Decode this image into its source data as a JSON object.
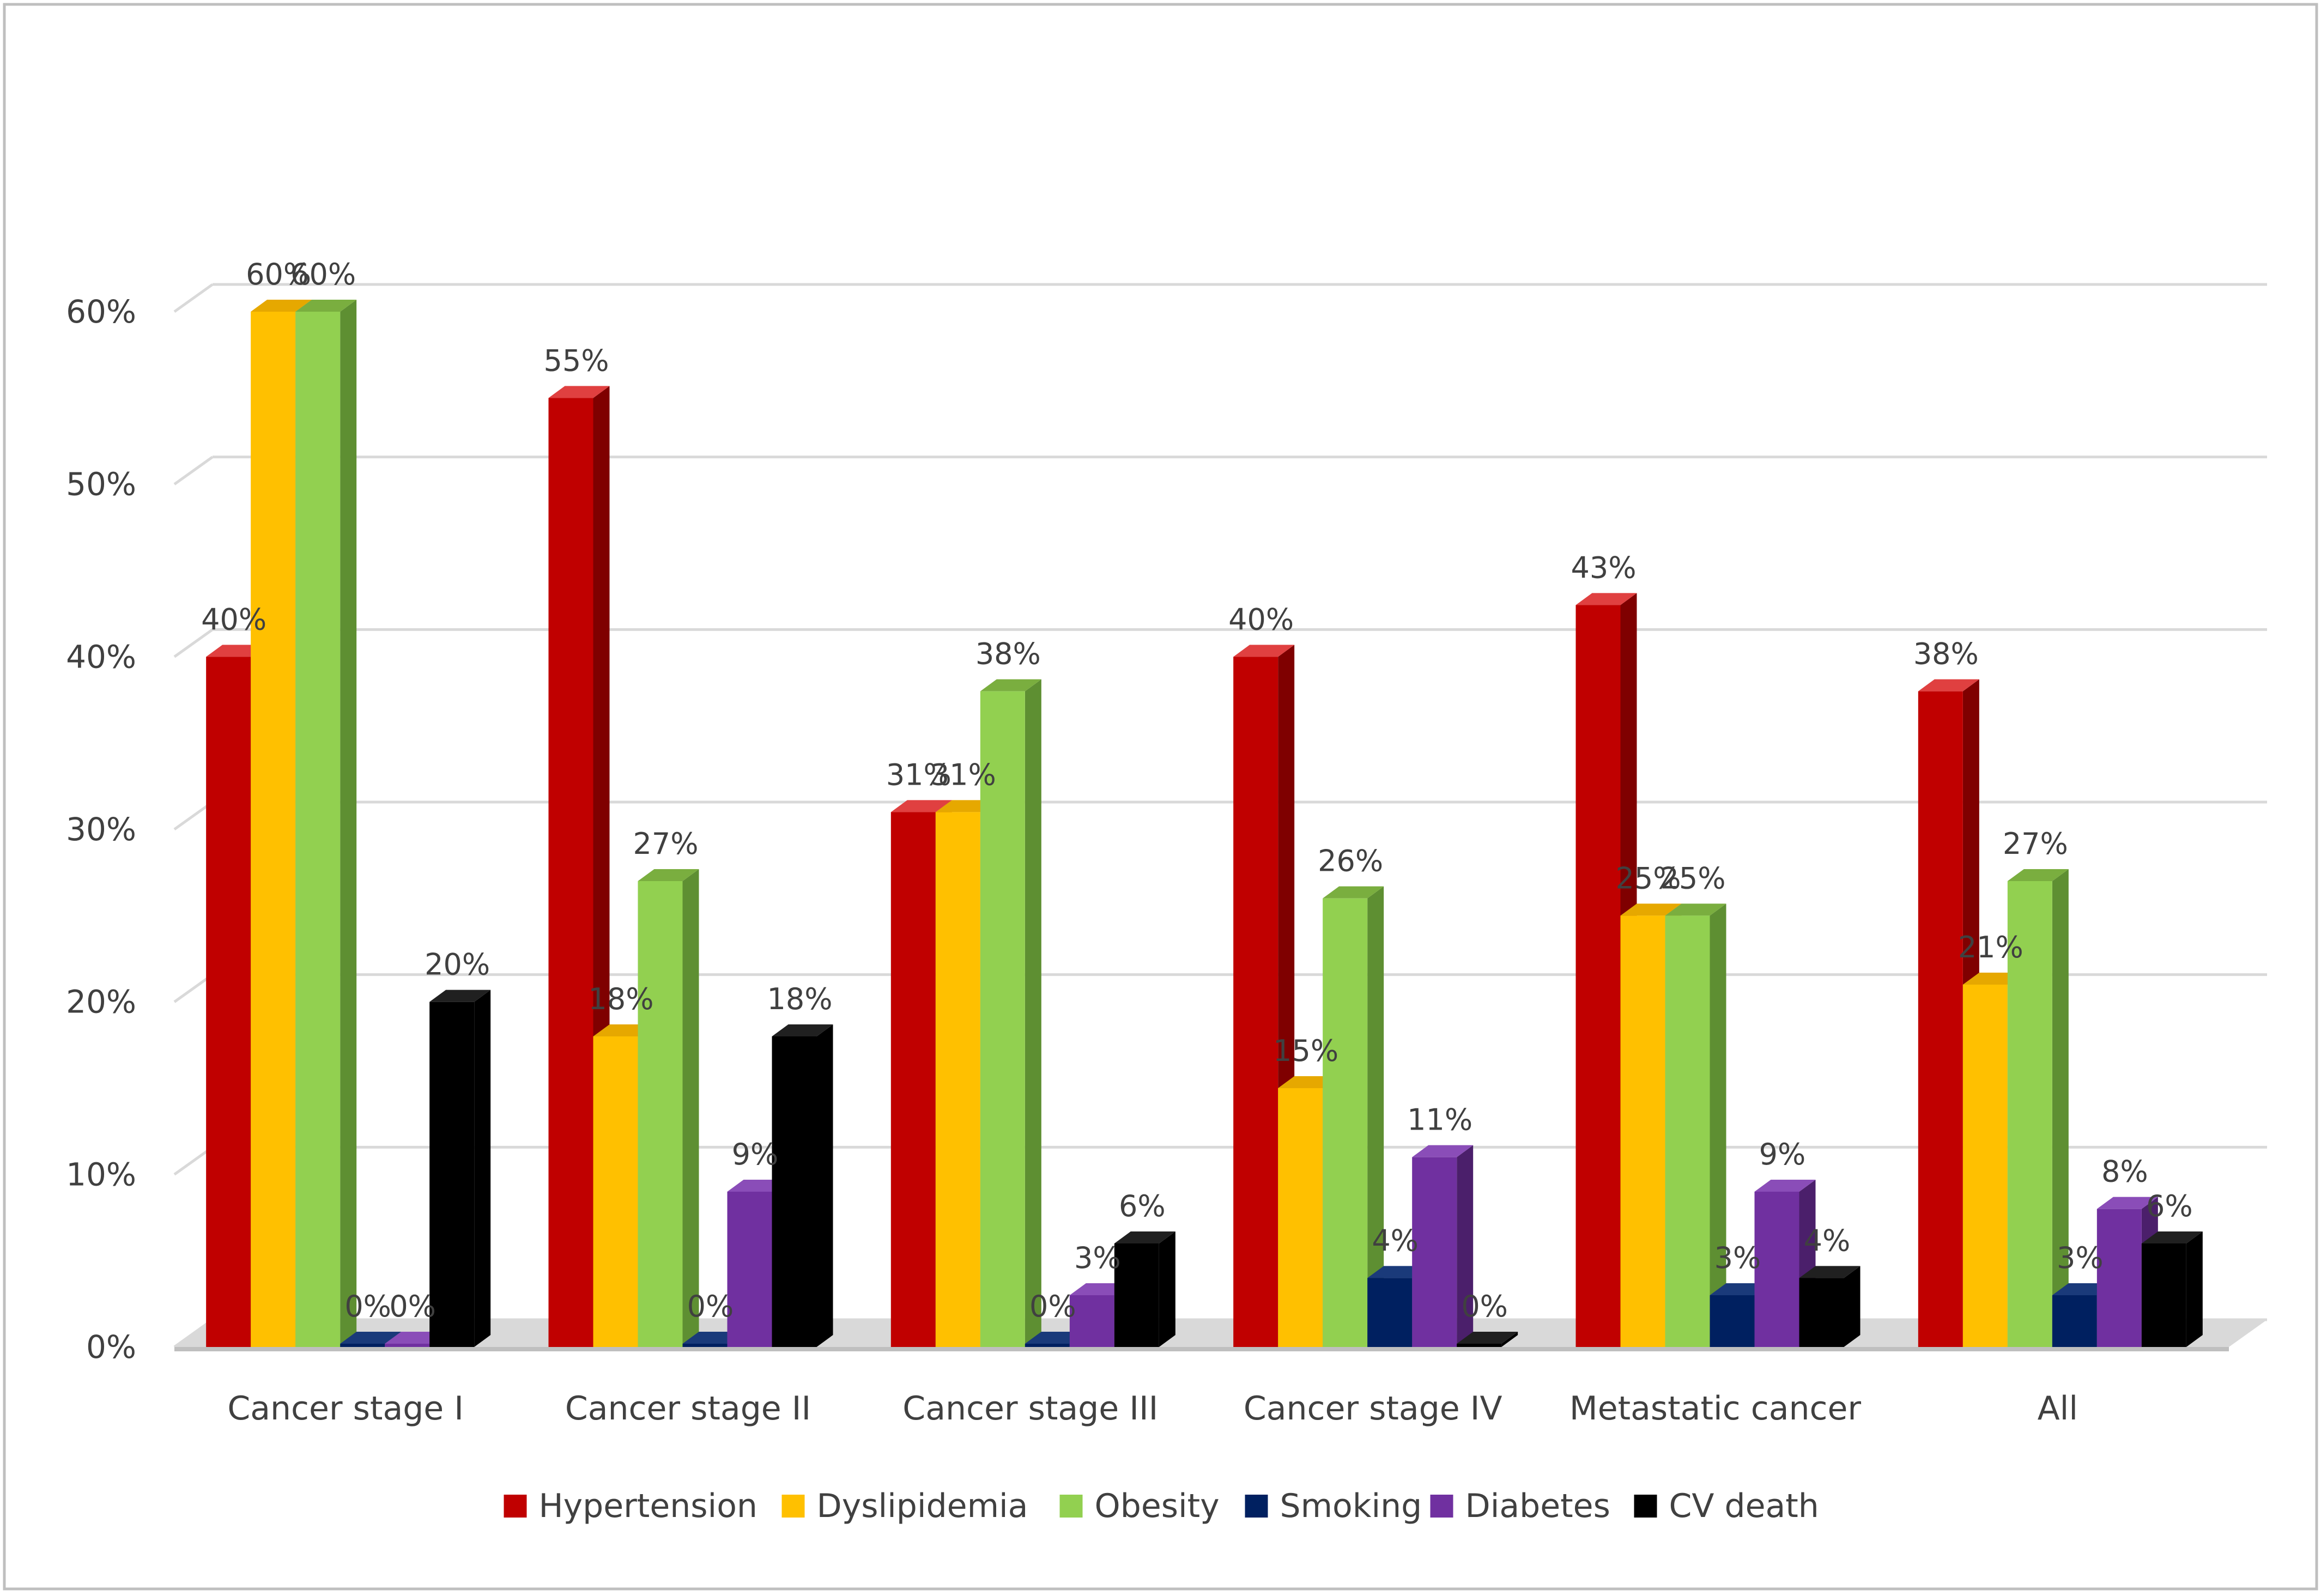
{
  "chart_data": {
    "type": "bar",
    "title": "",
    "xlabel": "",
    "ylabel": "",
    "ylim": [
      0,
      60
    ],
    "y_ticks": [
      {
        "value": 0,
        "label": "0%"
      },
      {
        "value": 10,
        "label": "10%"
      },
      {
        "value": 20,
        "label": "20%"
      },
      {
        "value": 30,
        "label": "30%"
      },
      {
        "value": 40,
        "label": "40%"
      },
      {
        "value": 50,
        "label": "50%"
      },
      {
        "value": 60,
        "label": "60%"
      }
    ],
    "grid": true,
    "legend_position": "bottom",
    "categories": [
      "Cancer stage I",
      "Cancer stage II",
      "Cancer stage III",
      "Cancer stage IV",
      "Metastatic cancer",
      "All"
    ],
    "series": [
      {
        "name": "Hypertension",
        "color": "#C00000",
        "side": "#7F0000",
        "top": "#E04040",
        "values": [
          40,
          55,
          31,
          40,
          43,
          38
        ],
        "labels": [
          "40%",
          "55%",
          "31%",
          "40%",
          "43%",
          "38%"
        ]
      },
      {
        "name": "Dyslipidemia",
        "color": "#FFC000",
        "side": "#BF9000",
        "top": "#E6A800",
        "values": [
          60,
          18,
          31,
          15,
          25,
          21
        ],
        "labels": [
          "60%",
          "18%",
          "31%",
          "15%",
          "25%",
          "21%"
        ]
      },
      {
        "name": "Obesity",
        "color": "#92D050",
        "side": "#5E8F32",
        "top": "#7AAE3F",
        "values": [
          60,
          27,
          38,
          26,
          25,
          27
        ],
        "labels": [
          "60%",
          "27%",
          "38%",
          "26%",
          "25%",
          "27%"
        ]
      },
      {
        "name": "Smoking",
        "color": "#002060",
        "side": "#001236",
        "top": "#1A3A7A",
        "values": [
          0,
          0,
          0,
          4,
          3,
          3
        ],
        "labels": [
          "0%",
          "0%",
          "0%",
          "4%",
          "3%",
          "3%"
        ]
      },
      {
        "name": "Diabetes",
        "color": "#7030A0",
        "side": "#4B1F6B",
        "top": "#8A4DB8",
        "values": [
          0,
          9,
          3,
          11,
          9,
          8
        ],
        "labels": [
          "0%",
          "9%",
          "3%",
          "11%",
          "9%",
          "8%"
        ]
      },
      {
        "name": "CV death",
        "color": "#000000",
        "side": "#000000",
        "top": "#202020",
        "values": [
          20,
          18,
          6,
          0,
          4,
          6
        ],
        "labels": [
          "20%",
          "18%",
          "6%",
          "0%",
          "4%",
          "6%"
        ]
      }
    ]
  },
  "colors": {
    "grid": "#D9D9D9",
    "axis_text": "#404040",
    "border": "#BFBFBF",
    "floor": "#D9D9D9"
  }
}
